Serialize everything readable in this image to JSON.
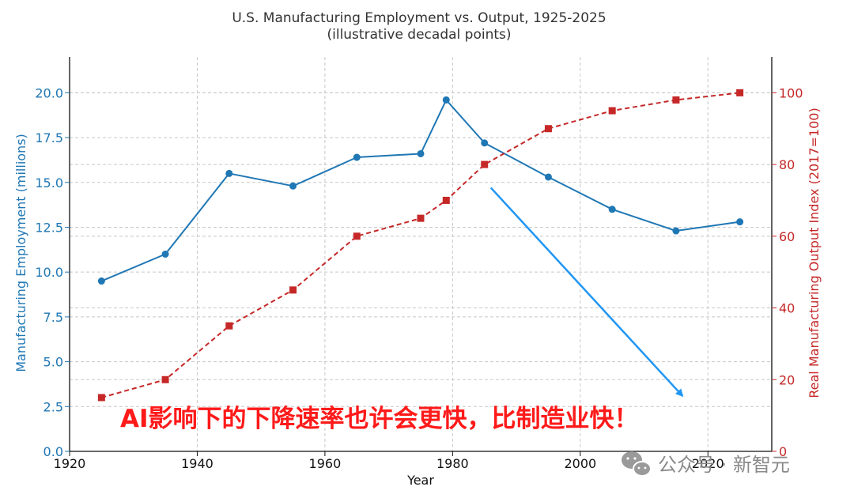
{
  "chart_data": {
    "type": "line",
    "title": "U.S. Manufacturing Employment vs. Output, 1925-2025",
    "subtitle": "(illustrative decadal points)",
    "xlabel": "Year",
    "ylabel_left": "Manufacturing Employment (millions)",
    "ylabel_right": "Real Manufacturing Output Index (2017=100)",
    "xlim": [
      1920,
      2030
    ],
    "ylim_left": [
      0,
      22
    ],
    "ylim_right": [
      0,
      110
    ],
    "x_ticks": [
      "1920",
      "1940",
      "1960",
      "1980",
      "2000",
      "2020"
    ],
    "y_ticks_left": [
      "0.0",
      "2.5",
      "5.0",
      "7.5",
      "10.0",
      "12.5",
      "15.0",
      "17.5",
      "20.0"
    ],
    "y_ticks_right": [
      "0",
      "20",
      "40",
      "60",
      "80",
      "100"
    ],
    "grid": true,
    "series": [
      {
        "name": "Manufacturing Employment (millions)",
        "axis": "left",
        "color": "#1f77b4",
        "style": "solid",
        "marker": "circle",
        "x": [
          1925,
          1935,
          1945,
          1955,
          1965,
          1975,
          1979,
          1985,
          1995,
          2005,
          2015,
          2025
        ],
        "y": [
          9.5,
          11.0,
          15.5,
          14.8,
          16.4,
          16.6,
          19.6,
          17.2,
          15.3,
          13.5,
          12.3,
          12.8
        ]
      },
      {
        "name": "Real Manufacturing Output Index (2017=100)",
        "axis": "right",
        "color": "#c62828",
        "style": "dashed",
        "marker": "square",
        "x": [
          1925,
          1935,
          1945,
          1955,
          1965,
          1975,
          1979,
          1985,
          1995,
          2005,
          2015,
          2025
        ],
        "y": [
          15,
          20,
          35,
          45,
          60,
          65,
          70,
          80,
          90,
          95,
          98,
          100
        ]
      }
    ],
    "annotation_text": "AI影响下的下降速率也许会更快，比制造业快！",
    "annotation_color": "#ff1a1a",
    "arrow_color": "#2196f3",
    "arrow": {
      "from": [
        1986,
        73.5
      ],
      "to": [
        2016,
        15.5
      ]
    }
  },
  "watermark": "公众号 · 新智元"
}
